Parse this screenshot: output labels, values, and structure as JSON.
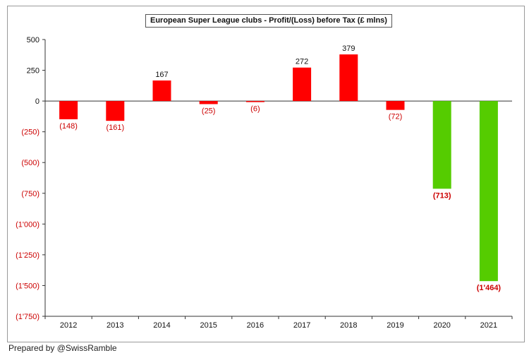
{
  "chart_data": {
    "type": "bar",
    "title": "European Super League clubs - Profit/(Loss) before Tax (£ mlns)",
    "categories": [
      "2012",
      "2013",
      "2014",
      "2015",
      "2016",
      "2017",
      "2018",
      "2019",
      "2020",
      "2021"
    ],
    "values": [
      -148,
      -161,
      167,
      -25,
      -6,
      272,
      379,
      -72,
      -713,
      -1464
    ],
    "data_labels": [
      "(148)",
      "(161)",
      "167",
      "(25)",
      "(6)",
      "272",
      "379",
      "(72)",
      "(713)",
      "(1'464)"
    ],
    "bar_colors": [
      "#ff0000",
      "#ff0000",
      "#ff0000",
      "#ff0000",
      "#ff0000",
      "#ff0000",
      "#ff0000",
      "#ff0000",
      "#55cc00",
      "#55cc00"
    ],
    "ylim": [
      -1750,
      500
    ],
    "yticks": [
      500,
      250,
      0,
      -250,
      -500,
      -750,
      -1000,
      -1250,
      -1500,
      -1750
    ],
    "ytick_labels": [
      "500",
      "250",
      "0",
      "(250)",
      "(500)",
      "(750)",
      "(1'000)",
      "(1'250)",
      "(1'500)",
      "(1'750)"
    ],
    "negative_label_color": "#cc0000",
    "positive_label_color": "#111111",
    "grid": false,
    "xlabel": "",
    "ylabel": ""
  },
  "footer": "Prepared by @SwissRamble"
}
